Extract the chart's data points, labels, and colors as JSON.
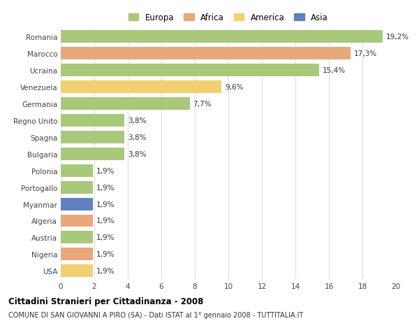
{
  "categories": [
    "Romania",
    "Marocco",
    "Ucraina",
    "Venezuela",
    "Germania",
    "Regno Unito",
    "Spagna",
    "Bulgaria",
    "Polonia",
    "Portogallo",
    "Myanmar",
    "Algeria",
    "Austria",
    "Nigeria",
    "USA"
  ],
  "values": [
    19.2,
    17.3,
    15.4,
    9.6,
    7.7,
    3.8,
    3.8,
    3.8,
    1.9,
    1.9,
    1.9,
    1.9,
    1.9,
    1.9,
    1.9
  ],
  "labels": [
    "19,2%",
    "17,3%",
    "15,4%",
    "9,6%",
    "7,7%",
    "3,8%",
    "3,8%",
    "3,8%",
    "1,9%",
    "1,9%",
    "1,9%",
    "1,9%",
    "1,9%",
    "1,9%",
    "1,9%"
  ],
  "bar_colors": [
    "#a8c87a",
    "#e8a87c",
    "#a8c87a",
    "#f0d070",
    "#a8c87a",
    "#a8c87a",
    "#a8c87a",
    "#a8c87a",
    "#a8c87a",
    "#a8c87a",
    "#6080c0",
    "#e8a87c",
    "#a8c87a",
    "#e8a87c",
    "#f0d070"
  ],
  "legend_labels": [
    "Europa",
    "Africa",
    "America",
    "Asia"
  ],
  "legend_colors": [
    "#a8c87a",
    "#e8a87c",
    "#f0d070",
    "#6080c0"
  ],
  "title": "Cittadini Stranieri per Cittadinanza - 2008",
  "subtitle": "COMUNE DI SAN GIOVANNI A PIRO (SA) - Dati ISTAT al 1° gennaio 2008 - TUTTITALIA.IT",
  "xlim": [
    0,
    20
  ],
  "xticks": [
    0,
    2,
    4,
    6,
    8,
    10,
    12,
    14,
    16,
    18,
    20
  ],
  "background_color": "#ffffff",
  "grid_color": "#dddddd"
}
